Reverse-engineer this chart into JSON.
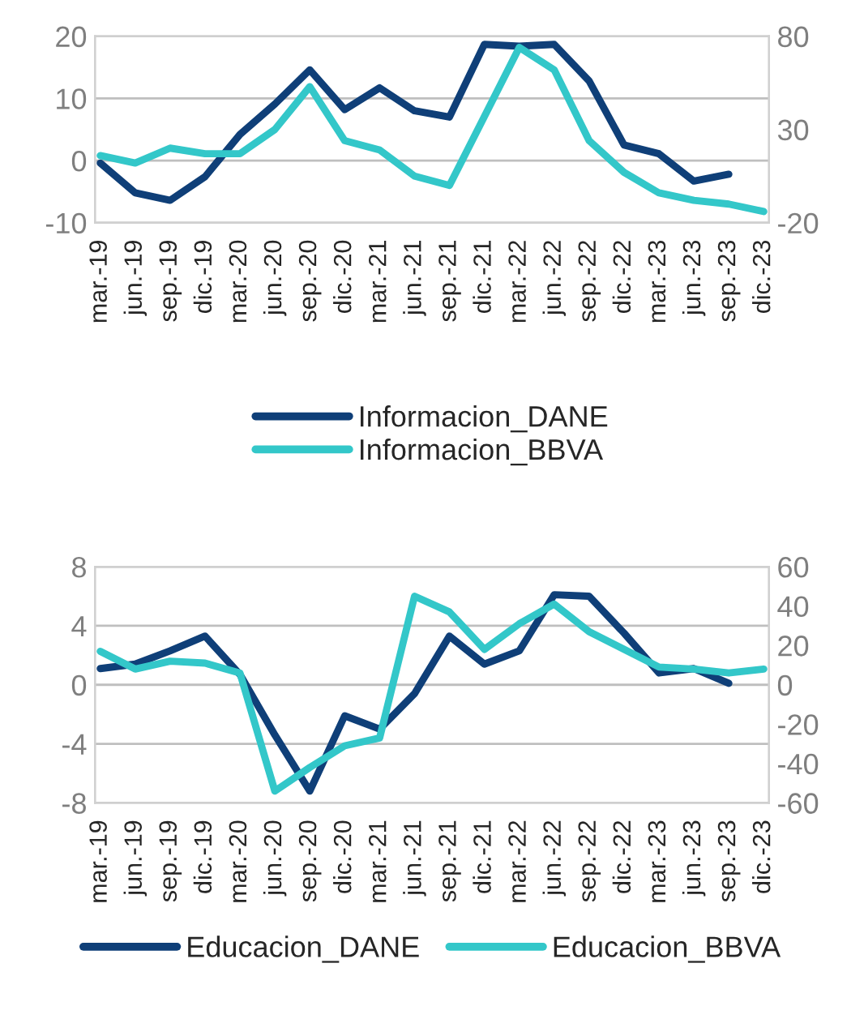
{
  "chart_data": [
    {
      "type": "line",
      "categories": [
        "mar.-19",
        "jun.-19",
        "sep.-19",
        "dic.-19",
        "mar.-20",
        "jun.-20",
        "sep.-20",
        "dic.-20",
        "mar.-21",
        "jun.-21",
        "sep.-21",
        "dic.-21",
        "mar.-22",
        "jun.-22",
        "sep.-22",
        "dic.-22",
        "mar.-23",
        "jun.-23",
        "sep.-23",
        "dic.-23"
      ],
      "series": [
        {
          "name": "Informacion_DANE",
          "color": "#0f3f78",
          "values": [
            -0.4,
            -5.2,
            -6.4,
            -2.6,
            4.2,
            9.1,
            14.6,
            8.2,
            11.7,
            8.0,
            7.0,
            18.7,
            18.4,
            18.7,
            12.8,
            2.5,
            1.1,
            -3.3,
            -2.2,
            null
          ]
        },
        {
          "name": "Informacion_BBVA",
          "color": "#33c7c9",
          "axis": "y2",
          "values": [
            16,
            12,
            20,
            17,
            17,
            30,
            53,
            24,
            19,
            5,
            0,
            37,
            74,
            62,
            24,
            7,
            -4,
            -8,
            -10,
            -14
          ]
        }
      ],
      "ylim": [
        -10,
        20
      ],
      "yticks": [
        -10,
        0,
        10,
        20
      ],
      "y2lim": [
        -20,
        80
      ],
      "y2ticks": [
        -20,
        30,
        80
      ],
      "grid": "y",
      "legend": "bottom",
      "line_style": "solid"
    },
    {
      "type": "line",
      "categories": [
        "mar.-19",
        "jun.-19",
        "sep.-19",
        "dic.-19",
        "mar.-20",
        "jun.-20",
        "sep.-20",
        "dic.-20",
        "mar.-21",
        "jun.-21",
        "sep.-21",
        "dic.-21",
        "mar.-22",
        "jun.-22",
        "sep.-22",
        "dic.-22",
        "mar.-23",
        "jun.-23",
        "sep.-23",
        "dic.-23"
      ],
      "series": [
        {
          "name": "Educacion_DANE",
          "color": "#0f3f78",
          "values": [
            1.1,
            1.4,
            2.3,
            3.3,
            0.7,
            -3.4,
            -7.2,
            -2.1,
            -3.0,
            -0.6,
            3.3,
            1.4,
            2.3,
            6.1,
            6.0,
            3.5,
            0.8,
            1.1,
            0.1,
            null
          ]
        },
        {
          "name": "Educacion_BBVA",
          "color": "#33c7c9",
          "axis": "y2",
          "values": [
            17,
            8,
            12,
            11,
            6,
            -54,
            -42,
            -31,
            -27,
            45,
            37,
            18,
            31,
            41,
            27,
            18,
            9,
            8,
            6,
            8
          ]
        }
      ],
      "ylim": [
        -8,
        8
      ],
      "yticks": [
        -8,
        -4,
        0,
        4,
        8
      ],
      "y2lim": [
        -60,
        60
      ],
      "y2ticks": [
        -60,
        -40,
        -20,
        0,
        20,
        40,
        60
      ],
      "grid": "y",
      "legend": "bottom",
      "line_style": "solid"
    }
  ]
}
